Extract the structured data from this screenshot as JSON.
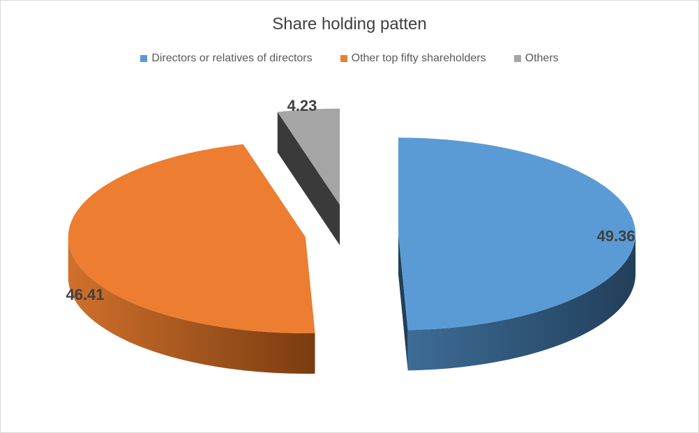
{
  "chart_data": {
    "type": "pie",
    "title": "Share holding patten",
    "legend_position": "top",
    "three_d": true,
    "exploded": true,
    "slices": [
      {
        "name": "Directors or relatives of directors",
        "value": 49.36,
        "label": "49.36",
        "color": "#5b9bd5",
        "side_dark": "#223f5a",
        "side_light": "#3d6c96"
      },
      {
        "name": "Other top fifty shareholders",
        "value": 46.41,
        "label": "46.41",
        "color": "#ed7d31",
        "side_dark": "#7a3c10",
        "side_light": "#d0702c"
      },
      {
        "name": "Others",
        "value": 4.23,
        "label": "4.23",
        "color": "#a5a5a5",
        "side_dark": "#3a3a3a",
        "side_light": "#5a5a5a"
      }
    ]
  }
}
